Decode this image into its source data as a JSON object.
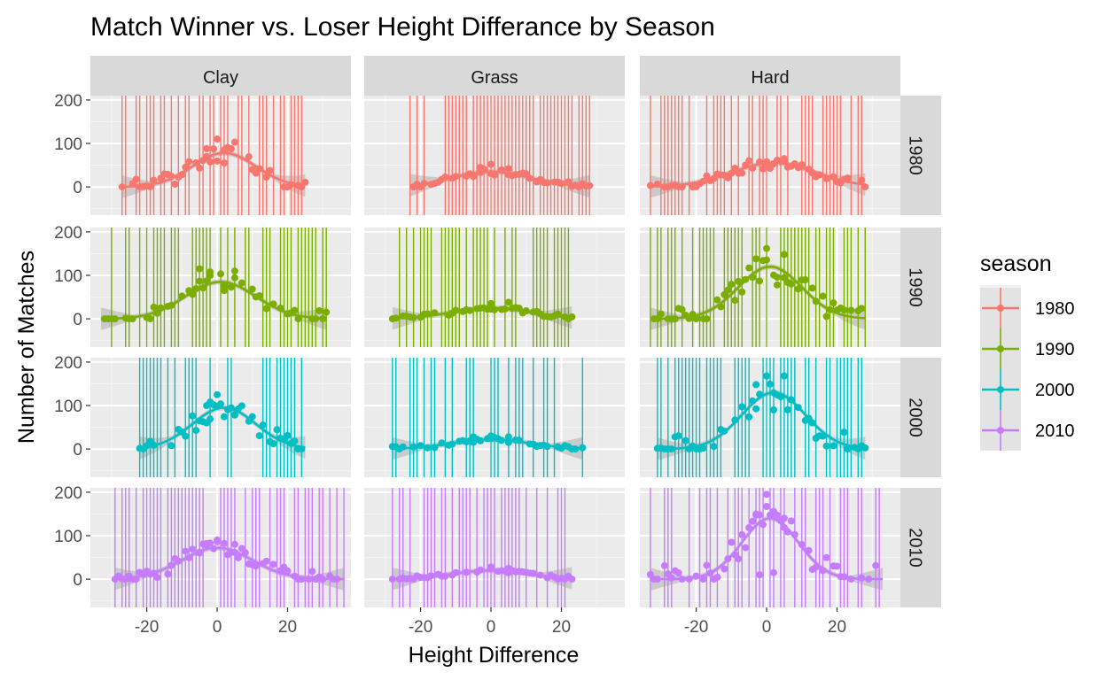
{
  "chart_data": {
    "type": "scatter",
    "title": "Match Winner vs. Loser Height Differance by Season",
    "xlabel": "Height Difference",
    "ylabel": "Number of Matches",
    "columns": [
      "Clay",
      "Grass",
      "Hard"
    ],
    "rows": [
      "1980",
      "1990",
      "2000",
      "2010"
    ],
    "xlim": [
      -36,
      38
    ],
    "ylim": [
      -65,
      210
    ],
    "xticks": [
      -20,
      0,
      20
    ],
    "yticks": [
      0,
      100,
      200
    ],
    "grid": true,
    "smooth": true,
    "legend": {
      "title": "season",
      "position": "right",
      "entries": [
        {
          "label": "1980",
          "color": "#F8766D"
        },
        {
          "label": "1990",
          "color": "#7CAE00"
        },
        {
          "label": "2000",
          "color": "#00BFC4"
        },
        {
          "label": "2010",
          "color": "#C77CFF"
        }
      ]
    },
    "panels": [
      {
        "season": "1980",
        "surface": "Clay",
        "xmin": -27,
        "xmax": 25,
        "peak": 78,
        "peak_x": 2,
        "sd": 9,
        "outliers": [
          [
            0,
            110
          ],
          [
            5,
            103
          ],
          [
            -3,
            88
          ],
          [
            2,
            55
          ]
        ]
      },
      {
        "season": "1980",
        "surface": "Grass",
        "xmin": -23,
        "xmax": 28,
        "peak": 35,
        "peak_x": 0,
        "sd": 11,
        "outliers": [
          [
            0,
            52
          ],
          [
            -3,
            45
          ],
          [
            5,
            42
          ]
        ]
      },
      {
        "season": "1980",
        "surface": "Hard",
        "xmin": -33,
        "xmax": 28,
        "peak": 55,
        "peak_x": 2,
        "sd": 12,
        "outliers": [
          [
            -5,
            60
          ],
          [
            5,
            65
          ],
          [
            0,
            58
          ]
        ]
      },
      {
        "season": "1990",
        "surface": "Clay",
        "xmin": -33,
        "xmax": 31,
        "peak": 85,
        "peak_x": 1,
        "sd": 10,
        "outliers": [
          [
            -5,
            115
          ],
          [
            -2,
            108
          ],
          [
            5,
            110
          ],
          [
            2,
            65
          ]
        ]
      },
      {
        "season": "1990",
        "surface": "Grass",
        "xmin": -28,
        "xmax": 23,
        "peak": 25,
        "peak_x": 0,
        "sd": 11,
        "outliers": [
          [
            0,
            35
          ],
          [
            5,
            38
          ]
        ]
      },
      {
        "season": "1990",
        "surface": "Hard",
        "xmin": -33,
        "xmax": 28,
        "peak": 120,
        "peak_x": 1,
        "sd": 9,
        "outliers": [
          [
            0,
            162
          ],
          [
            5,
            148
          ],
          [
            -3,
            138
          ],
          [
            3,
            78
          ]
        ]
      },
      {
        "season": "2000",
        "surface": "Clay",
        "xmin": -22,
        "xmax": 25,
        "peak": 95,
        "peak_x": 2,
        "sd": 9,
        "outliers": [
          [
            0,
            125
          ],
          [
            -2,
            108
          ],
          [
            5,
            78
          ],
          [
            -3,
            60
          ]
        ]
      },
      {
        "season": "2000",
        "surface": "Grass",
        "xmin": -28,
        "xmax": 26,
        "peak": 22,
        "peak_x": 0,
        "sd": 11,
        "outliers": [
          [
            0,
            30
          ],
          [
            -5,
            28
          ],
          [
            5,
            28
          ]
        ]
      },
      {
        "season": "2000",
        "surface": "Hard",
        "xmin": -31,
        "xmax": 28,
        "peak": 130,
        "peak_x": 2,
        "sd": 9,
        "outliers": [
          [
            0,
            168
          ],
          [
            5,
            168
          ],
          [
            -3,
            148
          ],
          [
            2,
            90
          ]
        ]
      },
      {
        "season": "2010",
        "surface": "Clay",
        "xmin": -29,
        "xmax": 36,
        "peak": 72,
        "peak_x": 0,
        "sd": 10,
        "outliers": [
          [
            0,
            90
          ],
          [
            -3,
            82
          ],
          [
            5,
            80
          ],
          [
            -5,
            60
          ]
        ]
      },
      {
        "season": "2010",
        "surface": "Grass",
        "xmin": -28,
        "xmax": 23,
        "peak": 20,
        "peak_x": 0,
        "sd": 11,
        "outliers": [
          [
            0,
            28
          ],
          [
            5,
            25
          ]
        ]
      },
      {
        "season": "2010",
        "surface": "Hard",
        "xmin": -33,
        "xmax": 33,
        "peak": 140,
        "peak_x": 1,
        "sd": 8,
        "outliers": [
          [
            0,
            195
          ],
          [
            -3,
            150
          ],
          [
            5,
            140
          ],
          [
            2,
            15
          ],
          [
            -2,
            10
          ]
        ]
      }
    ]
  }
}
